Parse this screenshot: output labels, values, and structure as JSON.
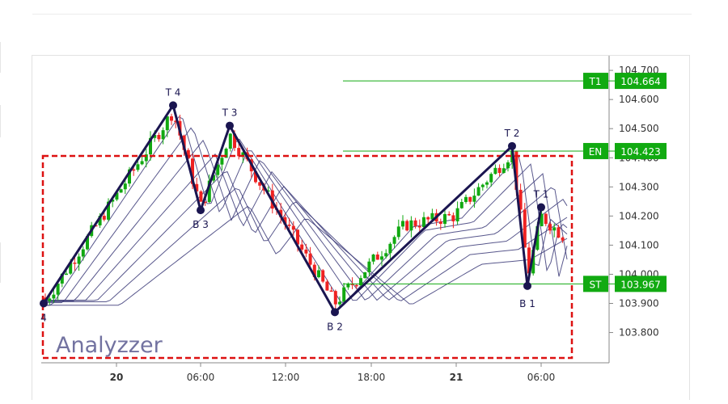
{
  "chart_data": {
    "type": "candlestick",
    "watermark": "Analyzzer",
    "yaxis": {
      "ticks": [
        "103.800",
        "103.900",
        "104.000",
        "104.100",
        "104.200",
        "104.300",
        "104.400",
        "104.500",
        "104.600",
        "104.700"
      ]
    },
    "xaxis": {
      "ticks": [
        "20",
        "06:00",
        "12:00",
        "18:00",
        "21",
        "06:00"
      ],
      "bold": [
        "20",
        "21"
      ]
    },
    "levels": [
      {
        "label": "T1",
        "value": "104.664"
      },
      {
        "label": "EN",
        "value": "104.423"
      },
      {
        "label": "ST",
        "value": "103.967"
      }
    ],
    "pattern_points": [
      {
        "label": "4",
        "value": 103.9
      },
      {
        "label": "T 4",
        "value": 104.58
      },
      {
        "label": "B 3",
        "value": 104.22
      },
      {
        "label": "T 3",
        "value": 104.51
      },
      {
        "label": "B 2",
        "value": 103.87
      },
      {
        "label": "T 2",
        "value": 104.44
      },
      {
        "label": "B 1",
        "value": 103.96
      },
      {
        "label": "T 1",
        "value": 104.23
      }
    ],
    "highlight_box": {
      "color": "#dd1111",
      "style": "dashed"
    },
    "colors": {
      "up": "#11a811",
      "down": "#ee2222",
      "level": "#11aa11",
      "pattern": "#1a1550",
      "ma": "#3b3a78"
    }
  }
}
